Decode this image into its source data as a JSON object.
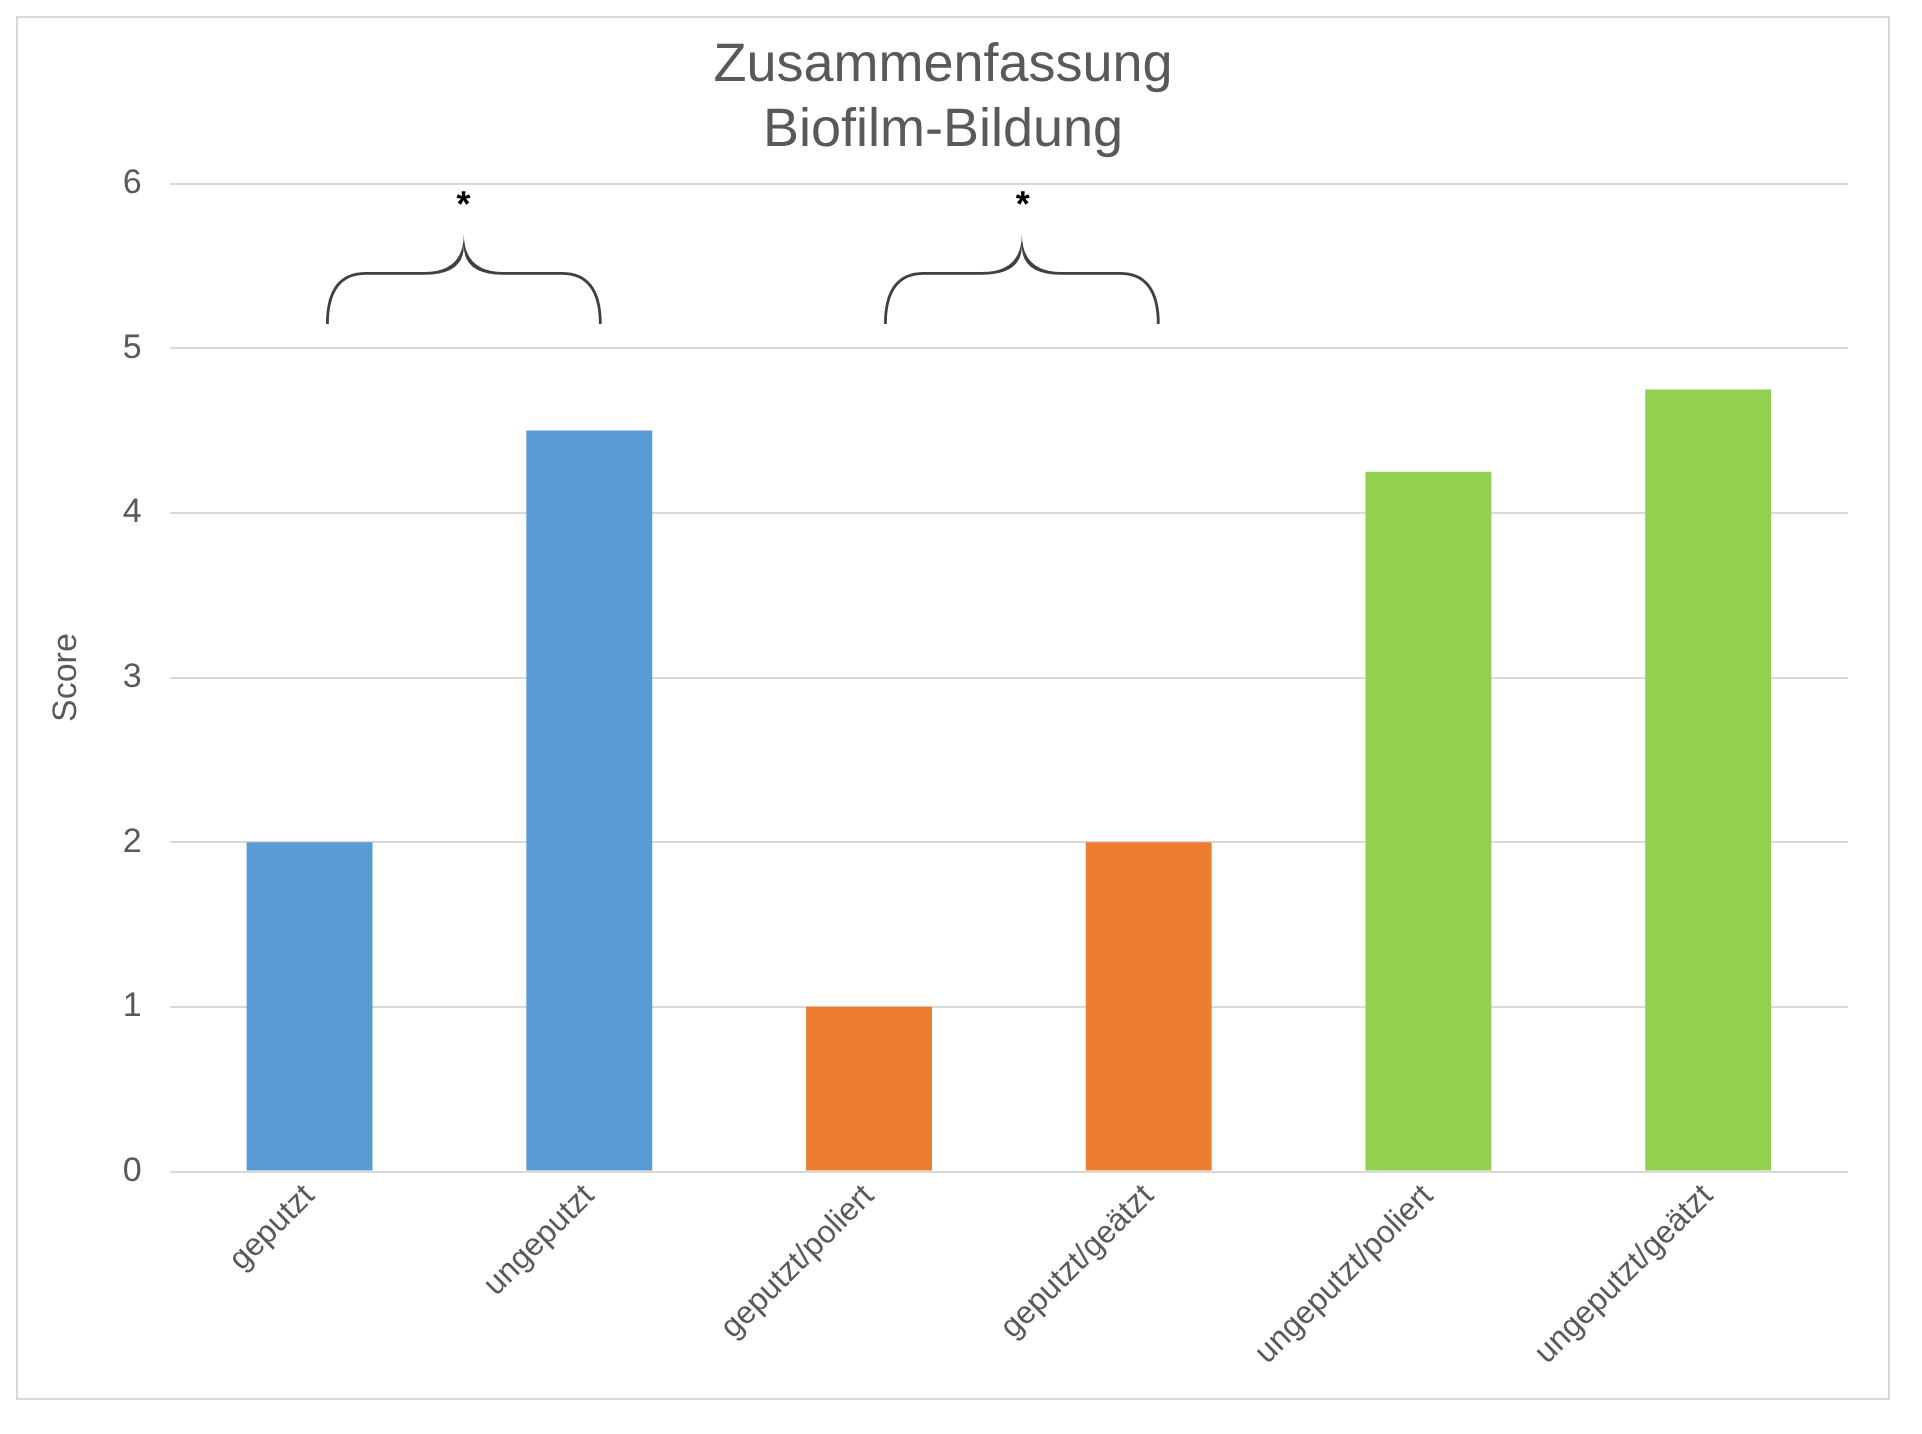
{
  "chart_data": {
    "type": "bar",
    "title": "Zusammenfassung\nBiofilm-Bildung",
    "ylabel": "Score",
    "categories": [
      "geputzt",
      "ungeputzt",
      "geputzt/poliert",
      "geputzt/geätzt",
      "ungeputzt/poliert",
      "ungeputzt/geätzt"
    ],
    "values": [
      2,
      4.5,
      1,
      2,
      4.25,
      4.75
    ],
    "colors": [
      "#5b9bd5",
      "#5b9bd5",
      "#ed7d31",
      "#ed7d31",
      "#92d050",
      "#92d050"
    ],
    "ylim": [
      0,
      6
    ],
    "yticks": [
      0,
      1,
      2,
      3,
      4,
      5,
      6
    ],
    "grid": "y",
    "legend": false,
    "annotations": [
      "*",
      "*"
    ]
  }
}
